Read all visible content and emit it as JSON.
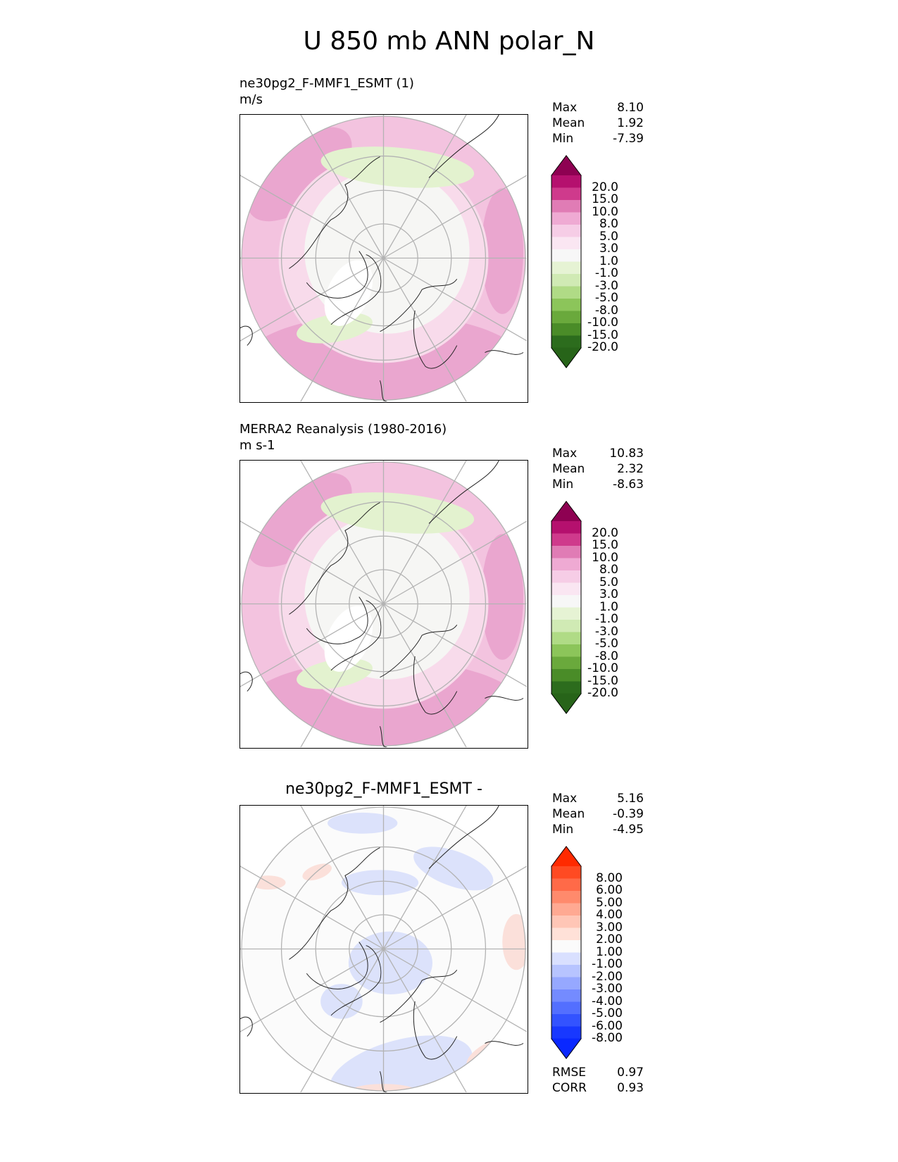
{
  "title": "U 850 mb ANN polar_N",
  "panels": [
    {
      "id": "test",
      "title_line1": "ne30pg2_F-MMF1_ESMT (1)",
      "title_line2": "m/s",
      "stats": [
        {
          "label": "Max",
          "value": "8.10"
        },
        {
          "label": "Mean",
          "value": "1.92"
        },
        {
          "label": "Min",
          "value": "-7.39"
        }
      ],
      "colorbar": {
        "labels": [
          "20.0",
          "15.0",
          "10.0",
          "8.0",
          "5.0",
          "3.0",
          "1.0",
          "-1.0",
          "-3.0",
          "-5.0",
          "-8.0",
          "-10.0",
          "-15.0",
          "-20.0"
        ],
        "colors": [
          "#8e0152",
          "#b5106e",
          "#cf3a8c",
          "#e07cb5",
          "#efaad3",
          "#f6cde6",
          "#fae6f2",
          "#f7f7f7",
          "#e6f3d4",
          "#d0eab4",
          "#b0db86",
          "#8cc55a",
          "#6aa93c",
          "#4a8c28",
          "#2c6c1d",
          "#276419"
        ]
      },
      "map_colors": {
        "outer": "#f3c3df",
        "mid": "#f8dbeb",
        "inner": "#f6f6f4",
        "green": "#e3f2cf",
        "deep_pink": "#eaa6cf"
      }
    },
    {
      "id": "reference",
      "title_line1": "MERRA2 Reanalysis (1980-2016)",
      "title_line2": "m s-1",
      "stats": [
        {
          "label": "Max",
          "value": "10.83"
        },
        {
          "label": "Mean",
          "value": "2.32"
        },
        {
          "label": "Min",
          "value": "-8.63"
        }
      ],
      "colorbar": {
        "labels": [
          "20.0",
          "15.0",
          "10.0",
          "8.0",
          "5.0",
          "3.0",
          "1.0",
          "-1.0",
          "-3.0",
          "-5.0",
          "-8.0",
          "-10.0",
          "-15.0",
          "-20.0"
        ],
        "colors": [
          "#8e0152",
          "#b5106e",
          "#cf3a8c",
          "#e07cb5",
          "#efaad3",
          "#f6cde6",
          "#fae6f2",
          "#f7f7f7",
          "#e6f3d4",
          "#d0eab4",
          "#b0db86",
          "#8cc55a",
          "#6aa93c",
          "#4a8c28",
          "#2c6c1d",
          "#276419"
        ]
      },
      "map_colors": {
        "outer": "#f3c3df",
        "mid": "#f8dbeb",
        "inner": "#f6f6f4",
        "green": "#e3f2cf",
        "deep_pink": "#eaa6cf"
      }
    },
    {
      "id": "difference",
      "title_line1": "ne30pg2_F-MMF1_ESMT -",
      "stats": [
        {
          "label": "Max",
          "value": "5.16"
        },
        {
          "label": "Mean",
          "value": "-0.39"
        },
        {
          "label": "Min",
          "value": "-4.95"
        }
      ],
      "metrics": [
        {
          "label": "RMSE",
          "value": "0.97"
        },
        {
          "label": "CORR",
          "value": "0.93"
        }
      ],
      "colorbar": {
        "labels": [
          "8.00",
          "6.00",
          "5.00",
          "4.00",
          "3.00",
          "2.00",
          "1.00",
          "-1.00",
          "-2.00",
          "-3.00",
          "-4.00",
          "-5.00",
          "-6.00",
          "-8.00"
        ],
        "colors": [
          "#ff2a00",
          "#ff4a22",
          "#ff6a48",
          "#ff8a6c",
          "#ffa992",
          "#ffc6b6",
          "#ffe1d8",
          "#fbfbfb",
          "#d9e0ff",
          "#b7c4ff",
          "#96a8ff",
          "#748bff",
          "#536fff",
          "#3353ff",
          "#1838ff",
          "#0a28ff"
        ]
      },
      "map_colors": {
        "outer": "#fbfbfb",
        "mid": "#fbfbfb",
        "inner": "#fbfbfb",
        "green": "#dce2fb",
        "deep_pink": "#fbe0da"
      }
    }
  ],
  "chart_data": {
    "type": "heatmap",
    "projection": "north polar stereographic",
    "variable": "U 850 mb",
    "season": "ANN",
    "region": "polar_N",
    "grid": true,
    "panels": [
      {
        "name": "ne30pg2_F-MMF1_ESMT (1)",
        "units": "m/s",
        "max": 8.1,
        "mean": 1.92,
        "min": -7.39,
        "levels": [
          -20.0,
          -15.0,
          -10.0,
          -8.0,
          -5.0,
          -3.0,
          -1.0,
          1.0,
          3.0,
          5.0,
          8.0,
          10.0,
          15.0,
          20.0
        ]
      },
      {
        "name": "MERRA2 Reanalysis (1980-2016)",
        "units": "m s-1",
        "max": 10.83,
        "mean": 2.32,
        "min": -8.63,
        "levels": [
          -20.0,
          -15.0,
          -10.0,
          -8.0,
          -5.0,
          -3.0,
          -1.0,
          1.0,
          3.0,
          5.0,
          8.0,
          10.0,
          15.0,
          20.0
        ]
      },
      {
        "name": "ne30pg2_F-MMF1_ESMT -",
        "max": 5.16,
        "mean": -0.39,
        "min": -4.95,
        "rmse": 0.97,
        "corr": 0.93,
        "levels": [
          -8.0,
          -6.0,
          -5.0,
          -4.0,
          -3.0,
          -2.0,
          -1.0,
          1.0,
          2.0,
          3.0,
          4.0,
          5.0,
          6.0,
          8.0
        ]
      }
    ]
  }
}
